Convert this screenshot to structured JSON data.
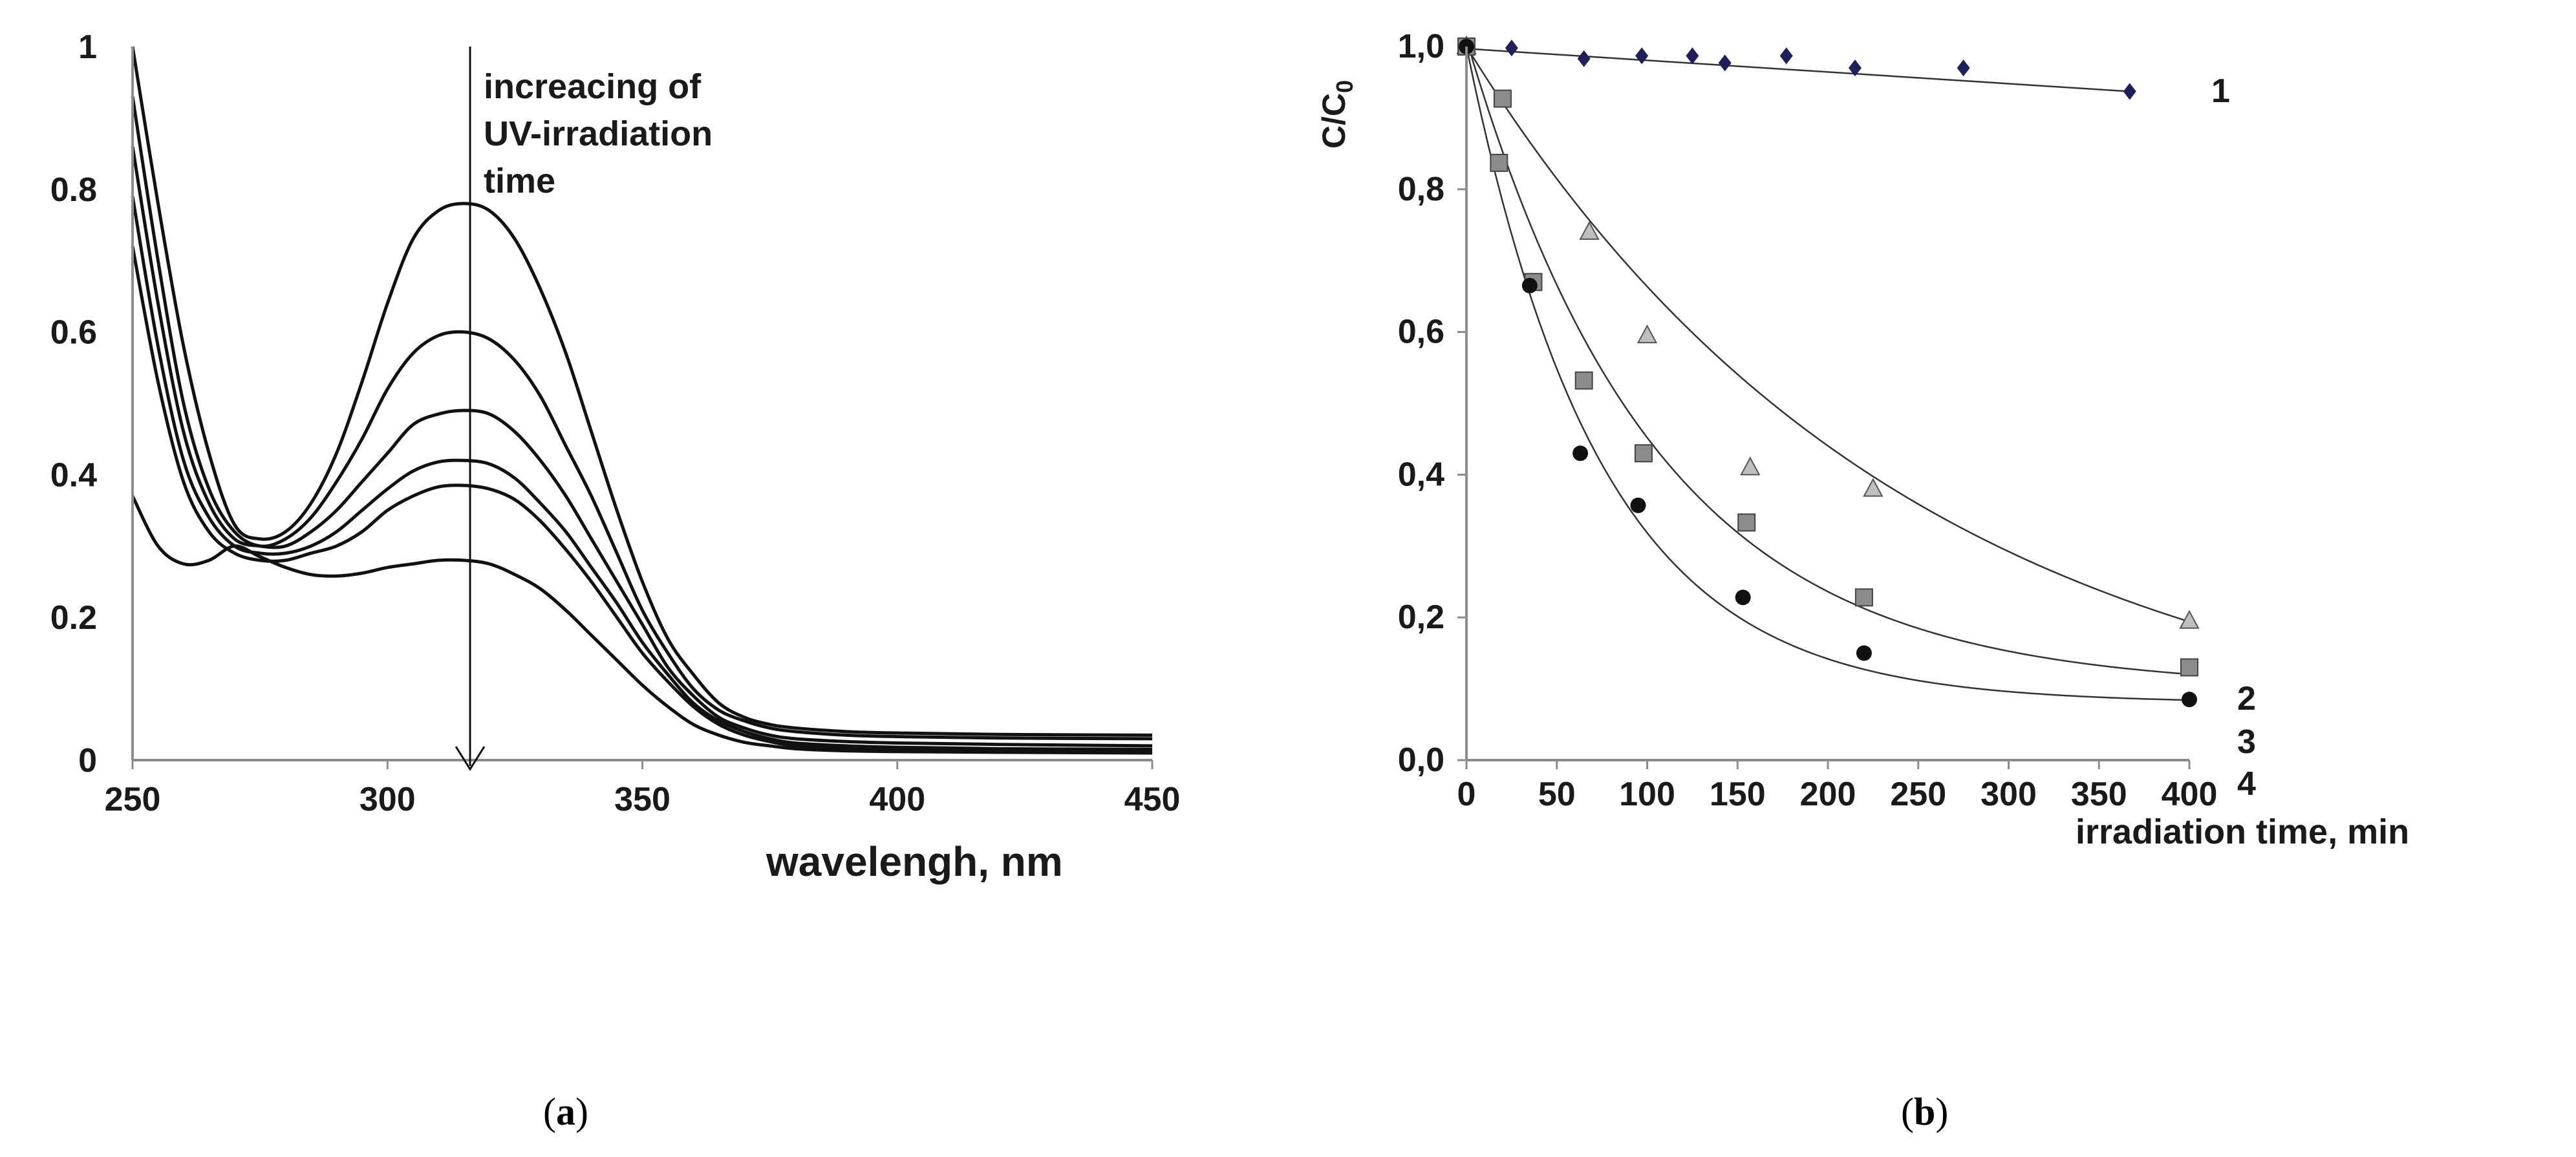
{
  "chart_data": [
    {
      "type": "line",
      "panel": "a",
      "xlabel": "wavelengh, nm",
      "ylabel": "",
      "xlim": [
        250,
        450
      ],
      "ylim": [
        0,
        1
      ],
      "x_ticks": [
        "250",
        "300",
        "350",
        "400",
        "450"
      ],
      "y_ticks": [
        "0",
        "0.2",
        "0.4",
        "0.6",
        "0.8",
        "1"
      ],
      "annotation": [
        "increacing of",
        "UV-irradiation",
        "time"
      ],
      "series": [
        {
          "x": [
            250,
            255,
            260,
            265,
            270,
            275,
            280,
            285,
            290,
            295,
            300,
            305,
            310,
            315,
            320,
            325,
            330,
            335,
            340,
            345,
            350,
            355,
            360,
            365,
            370,
            375,
            380,
            390,
            400,
            420,
            450
          ],
          "values": [
            1.0,
            0.78,
            0.58,
            0.43,
            0.33,
            0.31,
            0.32,
            0.36,
            0.43,
            0.53,
            0.64,
            0.73,
            0.77,
            0.78,
            0.77,
            0.73,
            0.66,
            0.57,
            0.46,
            0.35,
            0.25,
            0.17,
            0.12,
            0.08,
            0.06,
            0.05,
            0.045,
            0.04,
            0.038,
            0.036,
            0.035
          ]
        },
        {
          "x": [
            250,
            255,
            260,
            265,
            270,
            275,
            280,
            285,
            290,
            295,
            300,
            305,
            310,
            315,
            320,
            325,
            330,
            335,
            340,
            345,
            350,
            355,
            360,
            365,
            370,
            375,
            380,
            390,
            400,
            420,
            450
          ],
          "values": [
            0.93,
            0.7,
            0.5,
            0.38,
            0.32,
            0.3,
            0.31,
            0.34,
            0.39,
            0.45,
            0.52,
            0.57,
            0.595,
            0.6,
            0.59,
            0.56,
            0.51,
            0.44,
            0.37,
            0.29,
            0.21,
            0.15,
            0.1,
            0.07,
            0.055,
            0.045,
            0.04,
            0.035,
            0.033,
            0.031,
            0.03
          ]
        },
        {
          "x": [
            250,
            255,
            260,
            265,
            270,
            275,
            280,
            285,
            290,
            295,
            300,
            305,
            310,
            315,
            320,
            325,
            330,
            335,
            340,
            345,
            350,
            355,
            360,
            365,
            370,
            375,
            380,
            390,
            400,
            420,
            450
          ],
          "values": [
            0.86,
            0.64,
            0.46,
            0.36,
            0.31,
            0.3,
            0.3,
            0.32,
            0.35,
            0.39,
            0.43,
            0.47,
            0.485,
            0.49,
            0.485,
            0.46,
            0.42,
            0.37,
            0.31,
            0.25,
            0.19,
            0.13,
            0.09,
            0.06,
            0.045,
            0.035,
            0.03,
            0.026,
            0.024,
            0.022,
            0.02
          ]
        },
        {
          "x": [
            250,
            255,
            260,
            265,
            270,
            275,
            280,
            285,
            290,
            295,
            300,
            305,
            310,
            315,
            320,
            325,
            330,
            335,
            340,
            345,
            350,
            355,
            360,
            365,
            370,
            375,
            380,
            390,
            400,
            420,
            450
          ],
          "values": [
            0.79,
            0.58,
            0.42,
            0.34,
            0.3,
            0.29,
            0.29,
            0.3,
            0.32,
            0.35,
            0.38,
            0.405,
            0.418,
            0.42,
            0.415,
            0.395,
            0.36,
            0.32,
            0.27,
            0.22,
            0.165,
            0.12,
            0.08,
            0.055,
            0.04,
            0.03,
            0.024,
            0.02,
            0.018,
            0.016,
            0.015
          ]
        },
        {
          "x": [
            250,
            255,
            260,
            265,
            270,
            275,
            280,
            285,
            290,
            295,
            300,
            305,
            310,
            315,
            320,
            325,
            330,
            335,
            340,
            345,
            350,
            355,
            360,
            365,
            370,
            375,
            380,
            390,
            400,
            420,
            450
          ],
          "values": [
            0.72,
            0.53,
            0.39,
            0.32,
            0.29,
            0.28,
            0.28,
            0.29,
            0.3,
            0.32,
            0.35,
            0.37,
            0.383,
            0.385,
            0.38,
            0.365,
            0.335,
            0.295,
            0.25,
            0.2,
            0.15,
            0.11,
            0.075,
            0.05,
            0.035,
            0.026,
            0.02,
            0.016,
            0.014,
            0.013,
            0.012
          ]
        },
        {
          "x": [
            250,
            255,
            260,
            265,
            270,
            275,
            280,
            285,
            290,
            295,
            300,
            305,
            310,
            315,
            320,
            325,
            330,
            335,
            340,
            345,
            350,
            355,
            360,
            365,
            370,
            375,
            380,
            390,
            400,
            420,
            450
          ],
          "values": [
            0.37,
            0.3,
            0.275,
            0.28,
            0.3,
            0.285,
            0.27,
            0.26,
            0.258,
            0.262,
            0.27,
            0.275,
            0.28,
            0.28,
            0.275,
            0.26,
            0.24,
            0.21,
            0.175,
            0.14,
            0.105,
            0.075,
            0.05,
            0.035,
            0.025,
            0.02,
            0.016,
            0.013,
            0.012,
            0.011,
            0.01
          ]
        }
      ]
    },
    {
      "type": "scatter",
      "panel": "b",
      "xlabel": "irradiation time, min",
      "ylabel": "C/C0",
      "xlim": [
        0,
        400
      ],
      "ylim": [
        0,
        1
      ],
      "x_ticks": [
        "0",
        "50",
        "100",
        "150",
        "200",
        "250",
        "300",
        "350",
        "400"
      ],
      "y_ticks": [
        "0,0",
        "0,2",
        "0,4",
        "0,6",
        "0,8",
        "1,0"
      ],
      "series": [
        {
          "name": "1",
          "marker": "diamond",
          "color": "#1f1f5c",
          "x": [
            0,
            25,
            65,
            97,
            125,
            143,
            177,
            215,
            275,
            367
          ],
          "values": [
            1.0,
            0.998,
            0.983,
            0.987,
            0.987,
            0.977,
            0.987,
            0.97,
            0.97,
            0.937
          ],
          "fit": {
            "kind": "linear",
            "from": 0,
            "to": 367,
            "y0": 0.997,
            "y1": 0.937
          }
        },
        {
          "name": "2",
          "marker": "triangle",
          "color": "#bfbfbf",
          "x": [
            0,
            68,
            100,
            157,
            225,
            400
          ],
          "values": [
            1.0,
            0.74,
            0.595,
            0.41,
            0.38,
            0.195
          ],
          "fit": {
            "kind": "exp",
            "a": 1.0,
            "k": 0.0041,
            "c": 0.0
          }
        },
        {
          "name": "3",
          "marker": "square",
          "color": "#8c8c8c",
          "x": [
            0,
            20,
            18,
            37,
            65,
            98,
            155,
            220,
            400
          ],
          "values": [
            1.0,
            0.927,
            0.837,
            0.67,
            0.532,
            0.43,
            0.333,
            0.228,
            0.13
          ],
          "fit": {
            "kind": "exp",
            "a": 0.91,
            "k": 0.0095,
            "c": 0.1
          }
        },
        {
          "name": "4",
          "marker": "circle",
          "color": "#111111",
          "x": [
            0,
            35,
            63,
            95,
            153,
            220,
            400
          ],
          "values": [
            1.0,
            0.665,
            0.43,
            0.357,
            0.228,
            0.15,
            0.085
          ],
          "fit": {
            "kind": "exp",
            "a": 0.92,
            "k": 0.0135,
            "c": 0.08
          }
        }
      ]
    }
  ],
  "captions": {
    "a": "a",
    "b": "b"
  }
}
